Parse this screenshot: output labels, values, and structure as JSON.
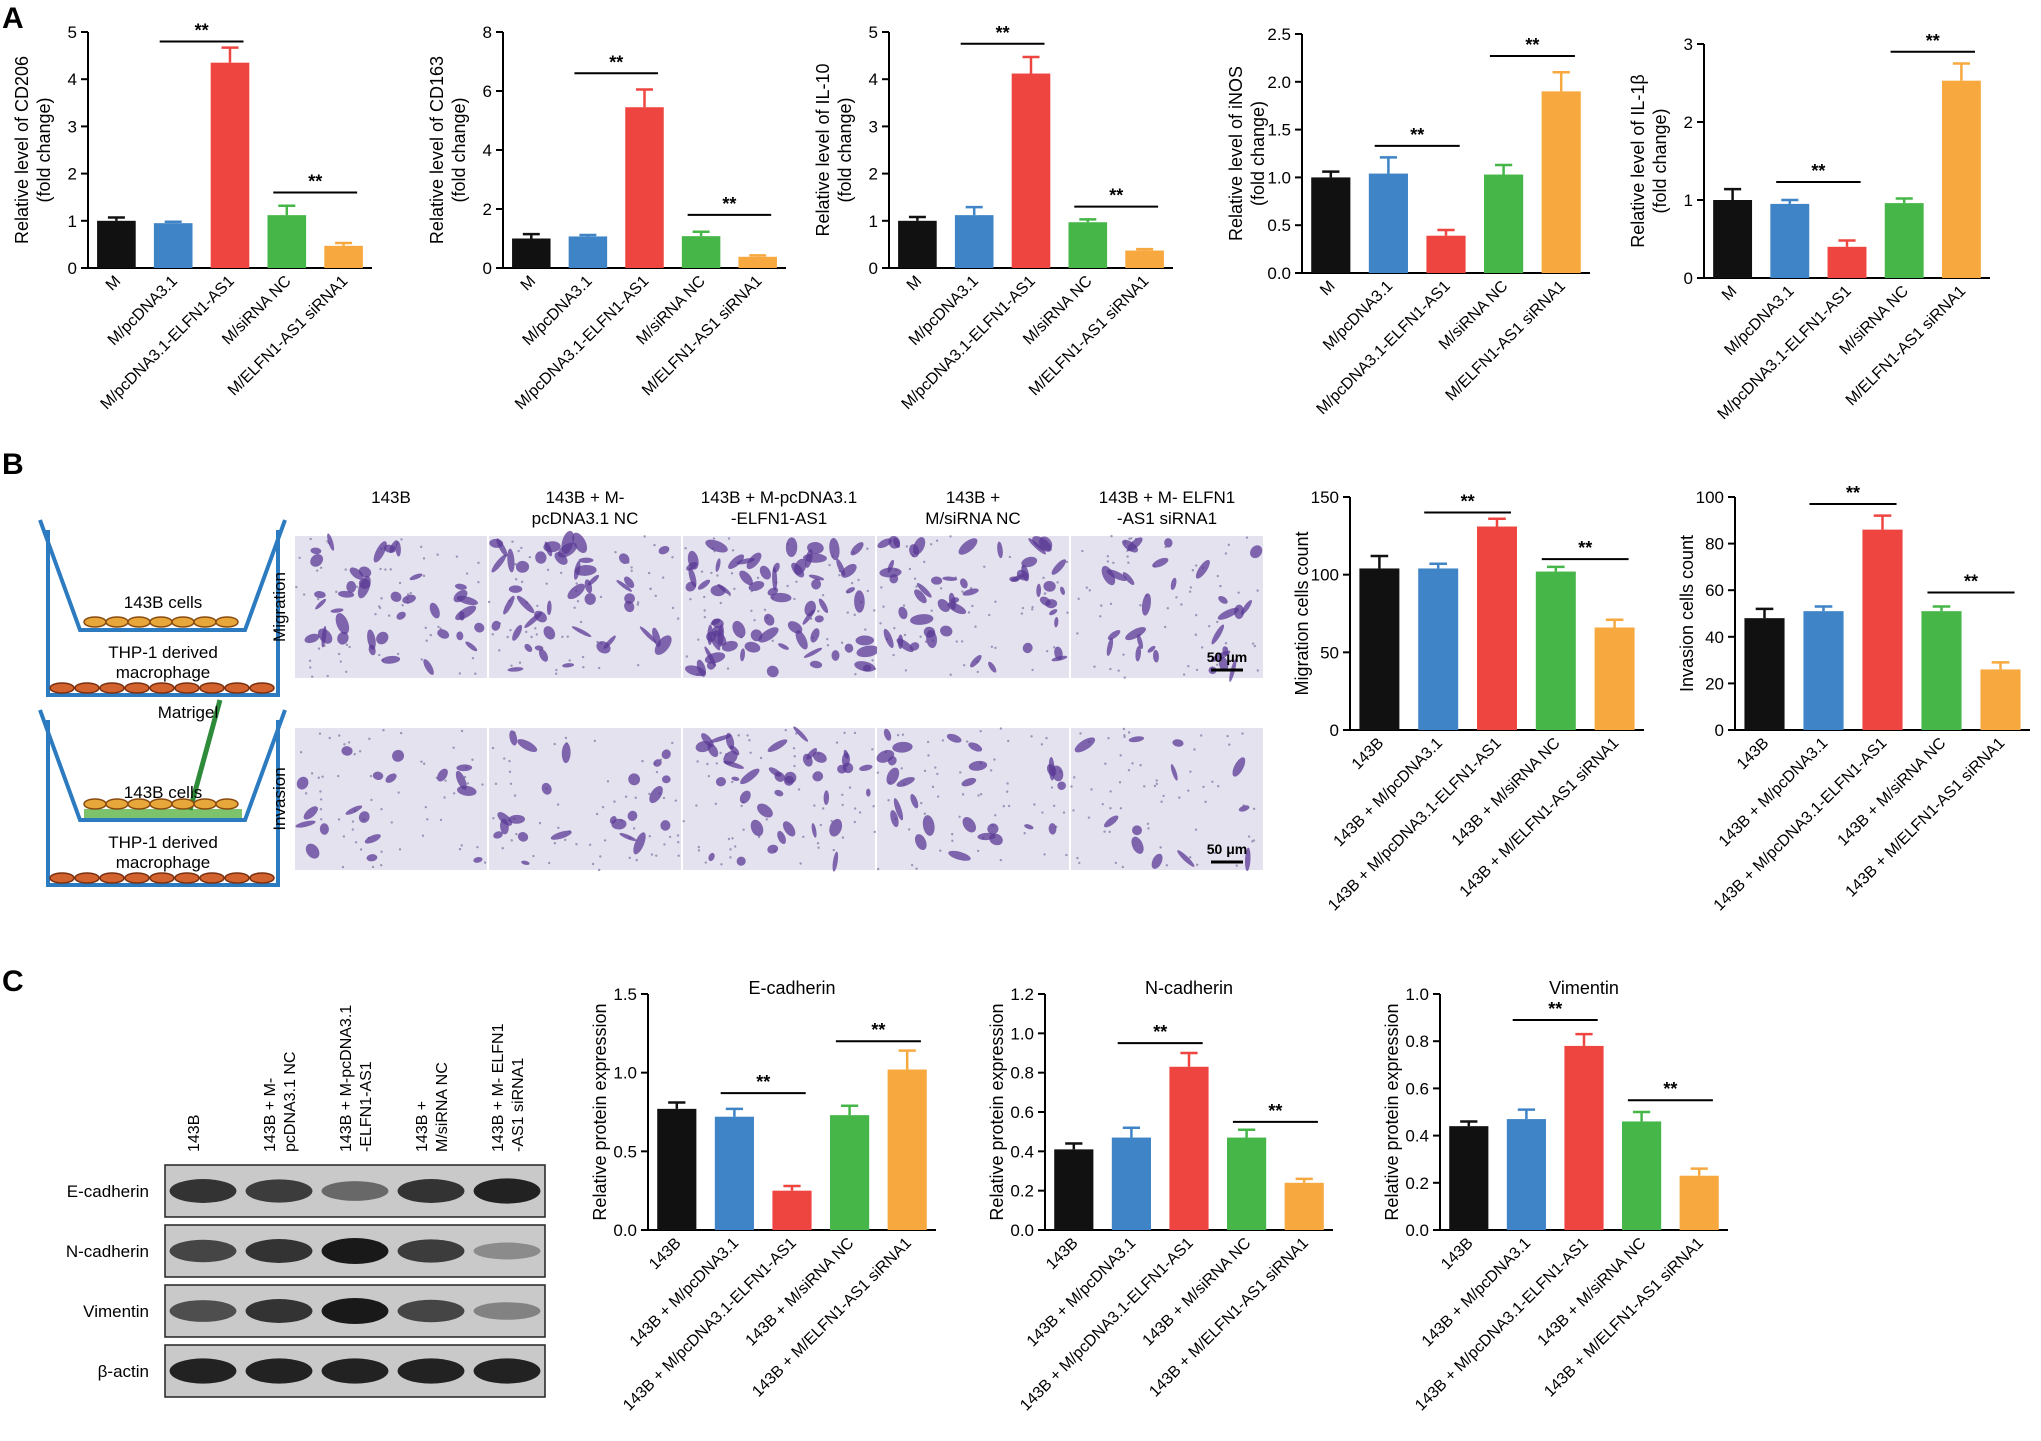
{
  "panels": {
    "a": "A",
    "b": "B",
    "c": "C"
  },
  "colors": [
    "#111111",
    "#3f84c6",
    "#ee4540",
    "#46b649",
    "#f7a940"
  ],
  "sig": "**",
  "chart_data": [
    {
      "type": "bar",
      "ylabel": "Relative level of CD206",
      "ylabel2": "(fold change)",
      "ylim": [
        0,
        5
      ],
      "yticks": [
        "0",
        "1",
        "2",
        "3",
        "4",
        "5"
      ],
      "categories": [
        "M",
        "M/pcDNA3.1",
        "M/pcDNA3.1-ELFN1-AS1",
        "M/siRNA NC",
        "M/ELFN1-AS1 siRNA1"
      ],
      "values": [
        1.0,
        0.95,
        4.35,
        1.12,
        0.47
      ],
      "errors": [
        0.07,
        0.03,
        0.32,
        0.2,
        0.06
      ],
      "brackets": [
        [
          1,
          2,
          4.8
        ],
        [
          3,
          4,
          1.6
        ]
      ]
    },
    {
      "type": "bar",
      "ylabel": "Relative level of CD163",
      "ylabel2": "(fold change)",
      "ylim": [
        0,
        8
      ],
      "yticks": [
        "0",
        "2",
        "4",
        "6",
        "8"
      ],
      "categories": [
        "M",
        "M/pcDNA3.1",
        "M/pcDNA3.1-ELFN1-AS1",
        "M/siRNA NC",
        "M/ELFN1-AS1 siRNA1"
      ],
      "values": [
        1.0,
        1.07,
        5.45,
        1.08,
        0.38
      ],
      "errors": [
        0.15,
        0.05,
        0.6,
        0.15,
        0.05
      ],
      "brackets": [
        [
          1,
          2,
          6.6
        ],
        [
          3,
          4,
          1.8
        ]
      ]
    },
    {
      "type": "bar",
      "ylabel": "Relative level of IL-10",
      "ylabel2": "(fold change)",
      "ylim": [
        0,
        5
      ],
      "yticks": [
        "0",
        "1",
        "2",
        "3",
        "4",
        "5"
      ],
      "categories": [
        "M",
        "M/pcDNA3.1",
        "M/pcDNA3.1-ELFN1-AS1",
        "M/siRNA NC",
        "M/ELFN1-AS1 siRNA1"
      ],
      "values": [
        1.0,
        1.12,
        4.12,
        0.97,
        0.37
      ],
      "errors": [
        0.08,
        0.17,
        0.35,
        0.06,
        0.03
      ],
      "brackets": [
        [
          1,
          2,
          4.75
        ],
        [
          3,
          4,
          1.3
        ]
      ]
    },
    {
      "type": "bar",
      "ylabel": "Relative level of iNOS",
      "ylabel2": "(fold change)",
      "ylim": [
        0,
        2.5
      ],
      "yticks": [
        "0.0",
        "0.5",
        "1.0",
        "1.5",
        "2.0",
        "2.5"
      ],
      "categories": [
        "M",
        "M/pcDNA3.1",
        "M/pcDNA3.1-ELFN1-AS1",
        "M/siRNA NC",
        "M/ELFN1-AS1 siRNA1"
      ],
      "values": [
        1.0,
        1.04,
        0.39,
        1.03,
        1.9
      ],
      "errors": [
        0.06,
        0.17,
        0.06,
        0.1,
        0.2
      ],
      "brackets": [
        [
          1,
          2,
          1.33
        ],
        [
          3,
          4,
          2.27
        ]
      ]
    },
    {
      "type": "bar",
      "ylabel": "Relative level of IL-1β",
      "ylabel2": "(fold change)",
      "ylim": [
        0,
        3
      ],
      "yticks": [
        "0",
        "1",
        "2",
        "3"
      ],
      "categories": [
        "M",
        "M/pcDNA3.1",
        "M/pcDNA3.1-ELFN1-AS1",
        "M/siRNA NC",
        "M/ELFN1-AS1 siRNA1"
      ],
      "values": [
        1.0,
        0.95,
        0.4,
        0.96,
        2.53
      ],
      "errors": [
        0.14,
        0.05,
        0.08,
        0.06,
        0.22
      ],
      "brackets": [
        [
          1,
          2,
          1.23
        ],
        [
          3,
          4,
          2.9
        ]
      ]
    },
    {
      "type": "bar",
      "ylabel": "Migration cells count",
      "ylabel2": "",
      "ylim": [
        0,
        150
      ],
      "yticks": [
        "0",
        "50",
        "100",
        "150"
      ],
      "categories": [
        "143B",
        "143B + M/pcDNA3.1",
        "143B + M/pcDNA3.1-ELFN1-AS1",
        "143B + M/siRNA NC",
        "143B + M/ELFN1-AS1 siRNA1"
      ],
      "values": [
        104,
        104,
        131,
        102,
        66
      ],
      "errors": [
        8,
        3,
        5,
        3,
        5
      ],
      "brackets": [
        [
          1,
          2,
          140
        ],
        [
          3,
          4,
          110
        ]
      ]
    },
    {
      "type": "bar",
      "ylabel": "Invasion cells count",
      "ylabel2": "",
      "ylim": [
        0,
        100
      ],
      "yticks": [
        "0",
        "20",
        "40",
        "60",
        "80",
        "100"
      ],
      "categories": [
        "143B",
        "143B + M/pcDNA3.1",
        "143B + M/pcDNA3.1-ELFN1-AS1",
        "143B + M/siRNA NC",
        "143B + M/ELFN1-AS1 siRNA1"
      ],
      "values": [
        48,
        51,
        86,
        51,
        26
      ],
      "errors": [
        4,
        2,
        6,
        2,
        3
      ],
      "brackets": [
        [
          1,
          2,
          97
        ],
        [
          3,
          4,
          59
        ]
      ]
    },
    {
      "type": "bar",
      "title": "E-cadherin",
      "ylabel": "Relative protein expression",
      "ylabel2": "",
      "ylim": [
        0,
        1.5
      ],
      "yticks": [
        "0.0",
        "0.5",
        "1.0",
        "1.5"
      ],
      "categories": [
        "143B",
        "143B + M/pcDNA3.1",
        "143B + M/pcDNA3.1-ELFN1-AS1",
        "143B + M/siRNA NC",
        "143B + M/ELFN1-AS1 siRNA1"
      ],
      "values": [
        0.77,
        0.72,
        0.25,
        0.73,
        1.02
      ],
      "errors": [
        0.04,
        0.05,
        0.03,
        0.06,
        0.12
      ],
      "brackets": [
        [
          1,
          2,
          0.87
        ],
        [
          3,
          4,
          1.2
        ]
      ]
    },
    {
      "type": "bar",
      "title": "N-cadherin",
      "ylabel": "Relative protein expression",
      "ylabel2": "",
      "ylim": [
        0,
        1.2
      ],
      "yticks": [
        "0.0",
        "0.2",
        "0.4",
        "0.6",
        "0.8",
        "1.0",
        "1.2"
      ],
      "categories": [
        "143B",
        "143B + M/pcDNA3.1",
        "143B + M/pcDNA3.1-ELFN1-AS1",
        "143B + M/siRNA NC",
        "143B + M/ELFN1-AS1 siRNA1"
      ],
      "values": [
        0.41,
        0.47,
        0.83,
        0.47,
        0.24
      ],
      "errors": [
        0.03,
        0.05,
        0.07,
        0.04,
        0.02
      ],
      "brackets": [
        [
          1,
          2,
          0.95
        ],
        [
          3,
          4,
          0.55
        ]
      ]
    },
    {
      "type": "bar",
      "title": "Vimentin",
      "ylabel": "Relative protein expression",
      "ylabel2": "",
      "ylim": [
        0,
        1.0
      ],
      "yticks": [
        "0.0",
        "0.2",
        "0.4",
        "0.6",
        "0.8",
        "1.0"
      ],
      "categories": [
        "143B",
        "143B + M/pcDNA3.1",
        "143B + M/pcDNA3.1-ELFN1-AS1",
        "143B + M/siRNA NC",
        "143B + M/ELFN1-AS1 siRNA1"
      ],
      "values": [
        0.44,
        0.47,
        0.78,
        0.46,
        0.23
      ],
      "errors": [
        0.02,
        0.04,
        0.05,
        0.04,
        0.03
      ],
      "brackets": [
        [
          1,
          2,
          0.89
        ],
        [
          3,
          4,
          0.55
        ]
      ]
    }
  ],
  "schematic": {
    "cells": "143B cells",
    "macrophage_line1": "THP-1 derived",
    "macrophage_line2": "macrophage",
    "matrigel": "Matrigel"
  },
  "micro": {
    "columns": [
      [
        "143B",
        ""
      ],
      [
        "143B + M-",
        "pcDNA3.1 NC"
      ],
      [
        "143B + M-pcDNA3.1",
        "-ELFN1-AS1"
      ],
      [
        "143B +",
        "M/siRNA NC"
      ],
      [
        "143B + M- ELFN1",
        "-AS1 siRNA1"
      ]
    ],
    "rows": [
      "Migration",
      "Invasion"
    ],
    "scale": "50 μm"
  },
  "blot": {
    "lanes": [
      [
        "143B"
      ],
      [
        "143B + M-",
        "pcDNA3.1 NC"
      ],
      [
        "143B + M-pcDNA3.1",
        "-ELFN1-AS1"
      ],
      [
        "143B +",
        "M/siRNA NC"
      ],
      [
        "143B + M- ELFN1",
        "-AS1 siRNA1"
      ]
    ],
    "rows": [
      "E-cadherin",
      "N-cadherin",
      "Vimentin",
      "β-actin"
    ],
    "intensity": [
      [
        0.85,
        0.8,
        0.55,
        0.85,
        0.95
      ],
      [
        0.75,
        0.85,
        1.0,
        0.8,
        0.35
      ],
      [
        0.7,
        0.85,
        1.0,
        0.75,
        0.4
      ],
      [
        0.95,
        0.95,
        0.95,
        0.95,
        0.95
      ]
    ]
  }
}
